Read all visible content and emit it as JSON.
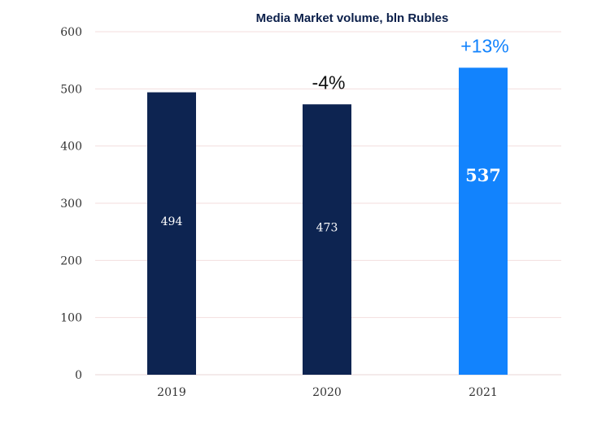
{
  "chart_data": {
    "type": "bar",
    "title": "Media Market volume, bln Rubles",
    "categories": [
      "2019",
      "2020",
      "2021"
    ],
    "values": [
      494,
      473,
      537
    ],
    "value_labels": [
      "494",
      "473",
      "537"
    ],
    "change_labels": [
      "",
      "-4%",
      "+13%"
    ],
    "bar_colors": [
      "#0d2451",
      "#0d2451",
      "#1283fd"
    ],
    "change_colors": [
      "#111111",
      "#111111",
      "#1283fd"
    ],
    "highlight_index": 2,
    "ylim": [
      0,
      600
    ],
    "yticks": [
      "0",
      "100",
      "200",
      "300",
      "400",
      "500",
      "600"
    ],
    "grid": true,
    "grid_color": "#f3dede",
    "legend": false
  }
}
